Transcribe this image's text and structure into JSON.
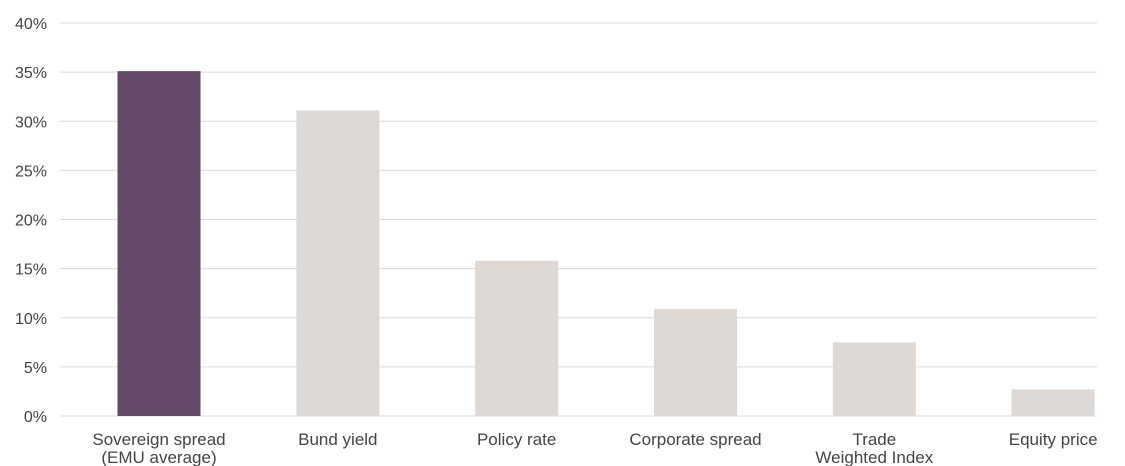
{
  "chart_data": {
    "type": "bar",
    "title": "",
    "xlabel": "",
    "ylabel": "",
    "ylim": [
      0,
      40
    ],
    "ytick_step": 5,
    "ytick_suffix": "%",
    "grid": true,
    "highlight_color": "#624a66",
    "bar_color": "#ded9d5",
    "highlight_index": 0,
    "categories": [
      [
        "Sovereign spread",
        "(EMU average)"
      ],
      [
        "Bund yield"
      ],
      [
        "Policy rate"
      ],
      [
        "Corporate spread"
      ],
      [
        "Trade",
        "Weighted Index"
      ],
      [
        "Equity price"
      ]
    ],
    "values": [
      35.1,
      31.1,
      15.8,
      10.9,
      7.5,
      2.7
    ]
  }
}
